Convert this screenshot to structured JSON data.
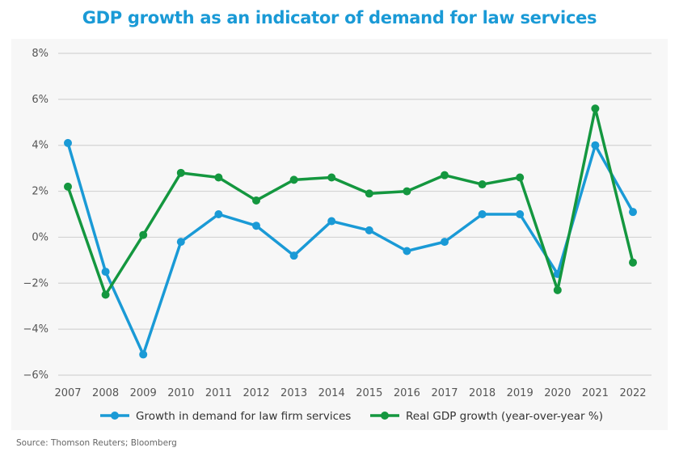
{
  "title": "GDP growth as an indicator of demand for law services",
  "source": "Source: Thomson Reuters; Bloomberg",
  "chart_data": {
    "type": "line",
    "title": "GDP growth as an indicator of demand for law services",
    "xlabel": "",
    "ylabel": "",
    "categories": [
      "2007",
      "2008",
      "2009",
      "2010",
      "2011",
      "2012",
      "2013",
      "2014",
      "2015",
      "2016",
      "2017",
      "2018",
      "2019",
      "2020",
      "2021",
      "2022"
    ],
    "ylim": [
      -6,
      8
    ],
    "yticks": [
      -6,
      -4,
      -2,
      0,
      2,
      4,
      6,
      8
    ],
    "ytick_labels": [
      "−6%",
      "−4%",
      "−2%",
      "0%",
      "2%",
      "4%",
      "6%",
      "8%"
    ],
    "grid": true,
    "legend_position": "bottom",
    "series": [
      {
        "name": "Growth in demand for law firm services",
        "color": "#1a9ad6",
        "values": [
          4.1,
          -1.5,
          -5.1,
          -0.2,
          1.0,
          0.5,
          -0.8,
          0.7,
          0.3,
          -0.6,
          -0.2,
          1.0,
          1.0,
          -1.6,
          4.0,
          1.1
        ]
      },
      {
        "name": "Real GDP growth (year-over-year %)",
        "color": "#14973f",
        "values": [
          2.2,
          -2.5,
          0.1,
          2.8,
          2.6,
          1.6,
          2.5,
          2.6,
          1.9,
          2.0,
          2.7,
          2.3,
          2.6,
          -2.3,
          5.6,
          -1.1
        ]
      }
    ]
  }
}
